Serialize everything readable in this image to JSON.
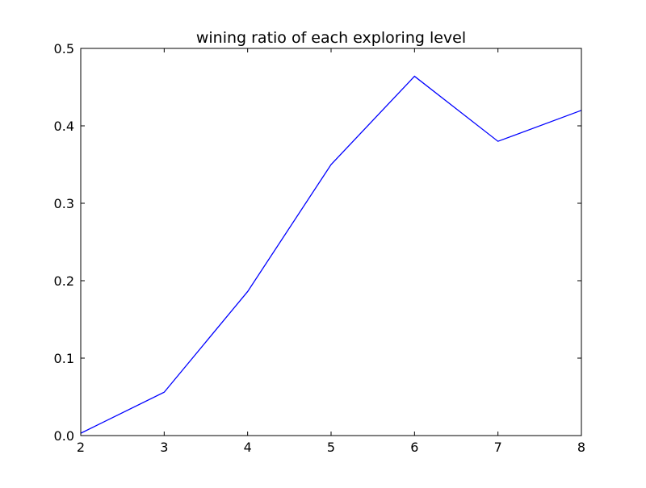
{
  "chart_data": {
    "type": "line",
    "title": "wining ratio of each exploring level",
    "xlabel": "",
    "ylabel": "",
    "x": [
      2,
      3,
      4,
      5,
      6,
      7,
      8
    ],
    "series": [
      {
        "color": "#0000ff",
        "values": [
          0.003,
          0.056,
          0.186,
          0.35,
          0.464,
          0.38,
          0.42
        ]
      }
    ],
    "xlim": [
      2,
      8
    ],
    "ylim": [
      0.0,
      0.5
    ],
    "xticks": [
      "2",
      "3",
      "4",
      "5",
      "6",
      "7",
      "8"
    ],
    "yticks": [
      "0.0",
      "0.1",
      "0.2",
      "0.3",
      "0.4",
      "0.5"
    ],
    "grid": false
  }
}
